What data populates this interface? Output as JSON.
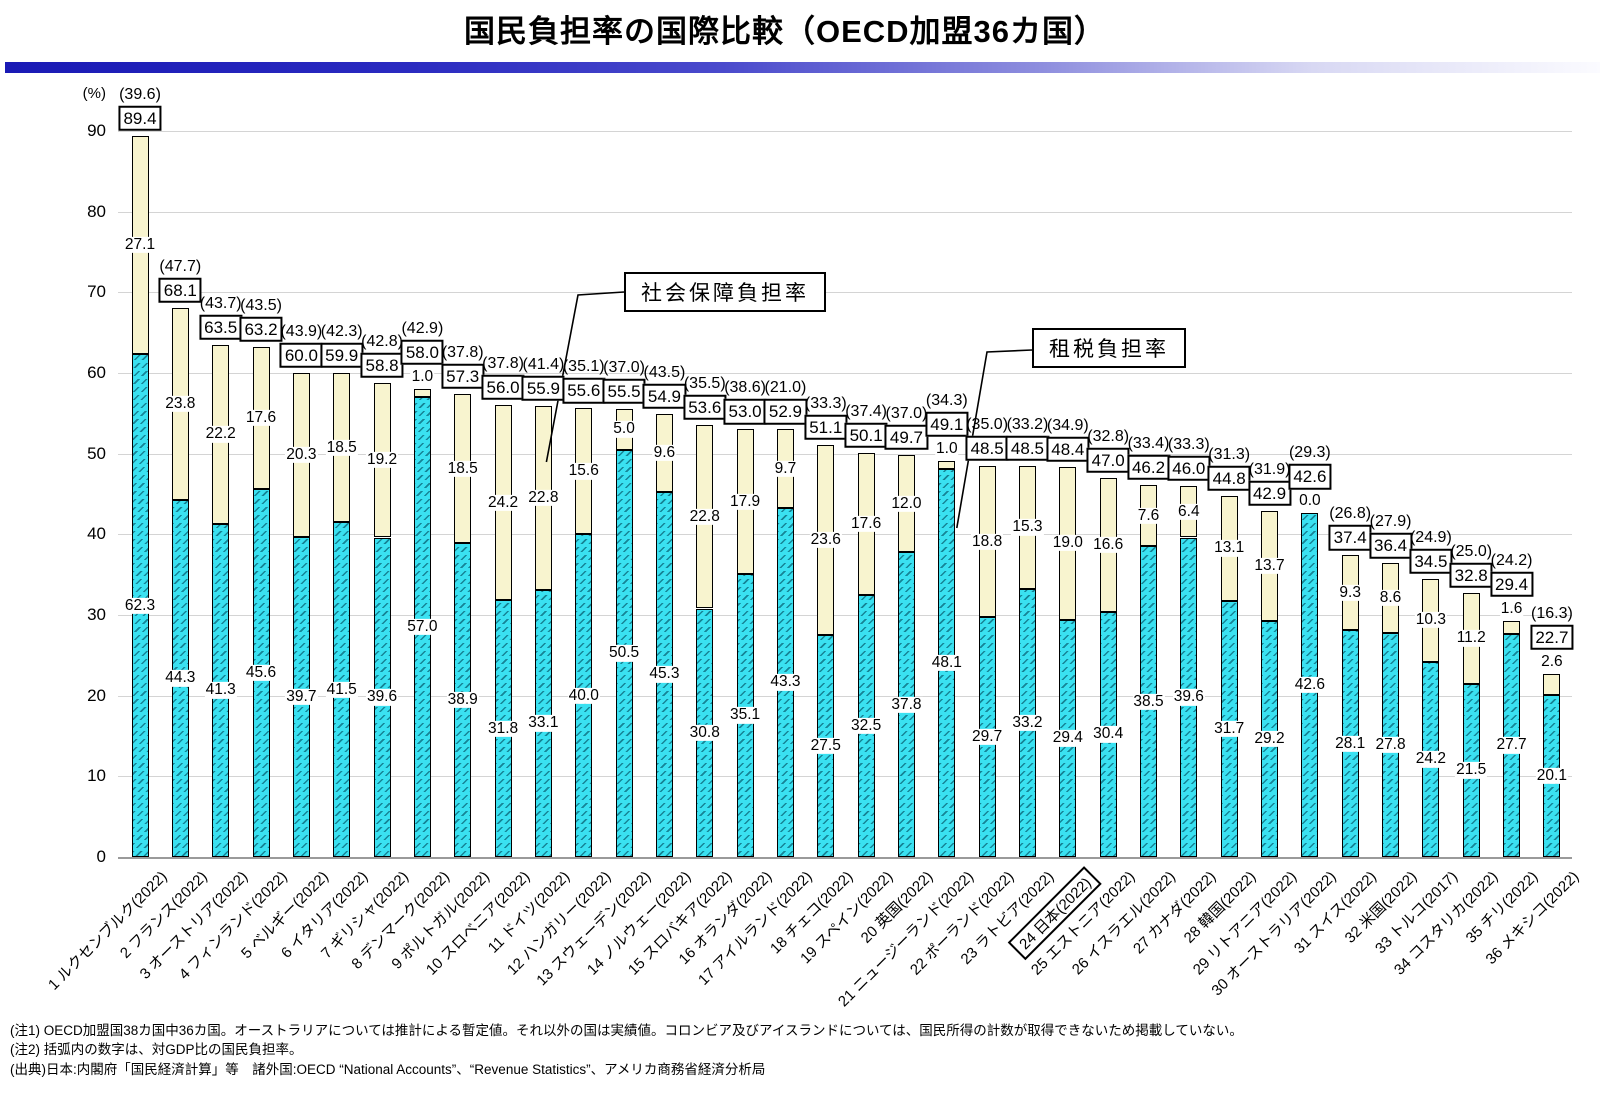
{
  "title": "国民負担率の国際比較（OECD加盟36カ国）",
  "y_axis": {
    "unit": "(%)",
    "ticks": [
      "0",
      "10",
      "20",
      "30",
      "40",
      "50",
      "60",
      "70",
      "80",
      "90"
    ]
  },
  "legend_callouts": [
    {
      "series": "social",
      "label": "社会保障負担率"
    },
    {
      "series": "tax",
      "label": "租税負担率"
    }
  ],
  "chart_data": {
    "type": "bar",
    "stacked": true,
    "ylabel": "(%)",
    "ylim": [
      0,
      93
    ],
    "grid": true,
    "note": "each bar = tax burden (cyan hatched, bottom) + social security burden (cream, top); boxed number = total; number in parentheses = national burden ratio to GDP",
    "colors": {
      "tax": "#3ae1f1",
      "social": "#f8f4cf"
    },
    "series_names": {
      "tax": "租税負担率",
      "social": "社会保障負担率"
    },
    "countries": [
      {
        "label": "1 ルクセンブルク(2022)",
        "gdp": "(39.6)",
        "total": "89.4",
        "social": "27.1",
        "tax": "62.3",
        "highlight": false
      },
      {
        "label": "2 フランス(2022)",
        "gdp": "(47.7)",
        "total": "68.1",
        "social": "23.8",
        "tax": "44.3",
        "highlight": false
      },
      {
        "label": "3 オーストリア(2022)",
        "gdp": "(43.7)",
        "total": "63.5",
        "social": "22.2",
        "tax": "41.3",
        "highlight": false
      },
      {
        "label": "4 フィンランド(2022)",
        "gdp": "(43.5)",
        "total": "63.2",
        "social": "17.6",
        "tax": "45.6",
        "highlight": false
      },
      {
        "label": "5 ベルギー(2022)",
        "gdp": "(43.9)",
        "total": "60.0",
        "social": "20.3",
        "tax": "39.7",
        "highlight": false
      },
      {
        "label": "6 イタリア(2022)",
        "gdp": "(42.3)",
        "total": "59.9",
        "social": "18.5",
        "tax": "41.5",
        "highlight": false
      },
      {
        "label": "7 ギリシャ(2022)",
        "gdp": "(42.8)",
        "total": "58.8",
        "social": "19.2",
        "tax": "39.6",
        "highlight": false
      },
      {
        "label": "8 デンマーク(2022)",
        "gdp": "(42.9)",
        "total": "58.0",
        "social": "1.0",
        "tax": "57.0",
        "highlight": false
      },
      {
        "label": "9 ポルトガル(2022)",
        "gdp": "(37.8)",
        "total": "57.3",
        "social": "18.5",
        "tax": "38.9",
        "highlight": false
      },
      {
        "label": "10 スロベニア(2022)",
        "gdp": "(37.8)",
        "total": "56.0",
        "social": "24.2",
        "tax": "31.8",
        "highlight": false
      },
      {
        "label": "11 ドイツ(2022)",
        "gdp": "(41.4)",
        "total": "55.9",
        "social": "22.8",
        "tax": "33.1",
        "highlight": false
      },
      {
        "label": "12 ハンガリー(2022)",
        "gdp": "(35.1)",
        "total": "55.6",
        "social": "15.6",
        "tax": "40.0",
        "highlight": false
      },
      {
        "label": "13 スウェーデン(2022)",
        "gdp": "(37.0)",
        "total": "55.5",
        "social": "5.0",
        "tax": "50.5",
        "highlight": false
      },
      {
        "label": "14 ノルウェー(2022)",
        "gdp": "(43.5)",
        "total": "54.9",
        "social": "9.6",
        "tax": "45.3",
        "highlight": false
      },
      {
        "label": "15 スロバキア(2022)",
        "gdp": "(35.5)",
        "total": "53.6",
        "social": "22.8",
        "tax": "30.8",
        "highlight": false
      },
      {
        "label": "16 オランダ(2022)",
        "gdp": "(38.6)",
        "total": "53.0",
        "social": "17.9",
        "tax": "35.1",
        "highlight": false
      },
      {
        "label": "17 アイルランド(2022)",
        "gdp": "(21.0)",
        "total": "52.9",
        "social": "9.7",
        "tax": "43.3",
        "highlight": false
      },
      {
        "label": "18 チェコ(2022)",
        "gdp": "(33.3)",
        "total": "51.1",
        "social": "23.6",
        "tax": "27.5",
        "highlight": false
      },
      {
        "label": "19 スペイン(2022)",
        "gdp": "(37.4)",
        "total": "50.1",
        "social": "17.6",
        "tax": "32.5",
        "highlight": false
      },
      {
        "label": "20 英国(2022)",
        "gdp": "(37.0)",
        "total": "49.7",
        "social": "12.0",
        "tax": "37.8",
        "highlight": false
      },
      {
        "label": "21 ニュージーランド(2022)",
        "gdp": "(34.3)",
        "total": "49.1",
        "social": "1.0",
        "tax": "48.1",
        "highlight": false
      },
      {
        "label": "22 ポーランド(2022)",
        "gdp": "(35.0)",
        "total": "48.5",
        "social": "18.8",
        "tax": "29.7",
        "highlight": false
      },
      {
        "label": "23 ラトビア(2022)",
        "gdp": "(33.2)",
        "total": "48.5",
        "social": "15.3",
        "tax": "33.2",
        "highlight": false
      },
      {
        "label": "24 日本(2022)",
        "gdp": "(34.9)",
        "total": "48.4",
        "social": "19.0",
        "tax": "29.4",
        "highlight": true
      },
      {
        "label": "25 エストニア(2022)",
        "gdp": "(32.8)",
        "total": "47.0",
        "social": "16.6",
        "tax": "30.4",
        "highlight": false
      },
      {
        "label": "26 イスラエル(2022)",
        "gdp": "(33.4)",
        "total": "46.2",
        "social": "7.6",
        "tax": "38.5",
        "highlight": false
      },
      {
        "label": "27 カナダ(2022)",
        "gdp": "(33.3)",
        "total": "46.0",
        "social": "6.4",
        "tax": "39.6",
        "highlight": false
      },
      {
        "label": "28 韓国(2022)",
        "gdp": "(31.3)",
        "total": "44.8",
        "social": "13.1",
        "tax": "31.7",
        "highlight": false
      },
      {
        "label": "29 リトアニア(2022)",
        "gdp": "(31.9)",
        "total": "42.9",
        "social": "13.7",
        "tax": "29.2",
        "highlight": false
      },
      {
        "label": "30 オーストラリア(2022)",
        "gdp": "(29.3)",
        "total": "42.6",
        "social": "0.0",
        "tax": "42.6",
        "highlight": false
      },
      {
        "label": "31 スイス(2022)",
        "gdp": "(26.8)",
        "total": "37.4",
        "social": "9.3",
        "tax": "28.1",
        "highlight": false
      },
      {
        "label": "32 米国(2022)",
        "gdp": "(27.9)",
        "total": "36.4",
        "social": "8.6",
        "tax": "27.8",
        "highlight": false
      },
      {
        "label": "33 トルコ(2017)",
        "gdp": "(24.9)",
        "total": "34.5",
        "social": "10.3",
        "tax": "24.2",
        "highlight": false
      },
      {
        "label": "34 コスタリカ(2022)",
        "gdp": "(25.0)",
        "total": "32.8",
        "social": "11.2",
        "tax": "21.5",
        "highlight": false
      },
      {
        "label": "35 チリ(2022)",
        "gdp": "(24.2)",
        "total": "29.4",
        "social": "1.6",
        "tax": "27.7",
        "highlight": false
      },
      {
        "label": "36 メキシコ(2022)",
        "gdp": "(16.3)",
        "total": "22.7",
        "social": "2.6",
        "tax": "20.1",
        "highlight": false
      }
    ]
  },
  "notes": [
    "(注1) OECD加盟国38カ国中36カ国。オーストラリアについては推計による暫定値。それ以外の国は実績値。コロンビア及びアイスランドについては、国民所得の計数が取得できないため掲載していない。",
    "(注2) 括弧内の数字は、対GDP比の国民負担率。",
    "(出典)日本:内閣府「国民経済計算」等　諸外国:OECD “National Accounts”、“Revenue Statistics”、アメリカ商務省経済分析局"
  ]
}
